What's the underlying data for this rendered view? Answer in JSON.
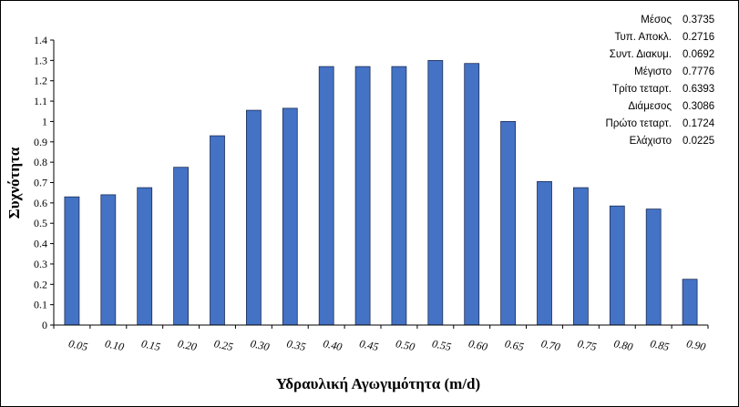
{
  "chart_data": {
    "type": "bar",
    "categories": [
      "0.05",
      "0.10",
      "0.15",
      "0.20",
      "0.25",
      "0.30",
      "0.35",
      "0.40",
      "0.45",
      "0.50",
      "0.55",
      "0.60",
      "0.65",
      "0.70",
      "0.75",
      "0.80",
      "0.85",
      "0.90"
    ],
    "values": [
      0.63,
      0.64,
      0.675,
      0.775,
      0.93,
      1.055,
      1.065,
      1.27,
      1.27,
      1.27,
      1.3,
      1.285,
      1.0,
      0.705,
      0.675,
      0.585,
      0.57,
      0.225
    ],
    "xlabel": "Υδραυλική Αγωγιμότητα (m/d)",
    "ylabel": "Συχνότητα",
    "ylim": [
      0,
      1.4
    ],
    "yticks": [
      "0",
      "0.1",
      "0.2",
      "0.3",
      "0.4",
      "0.5",
      "0.6",
      "0.7",
      "0.8",
      "0.9",
      "1",
      "1.1",
      "1.2",
      "1.3",
      "1.4"
    ],
    "bar_color": "#4472C4",
    "grid": false,
    "legend": "none"
  },
  "stats": [
    {
      "label": "Μέσος",
      "value": "0.3735"
    },
    {
      "label": "Τυπ. Αποκλ.",
      "value": "0.2716"
    },
    {
      "label": "Συντ. Διακυμ.",
      "value": "0.0692"
    },
    {
      "label": "Μέγιστο",
      "value": "0.7776"
    },
    {
      "label": "Τρίτο τεταρτ.",
      "value": "0.6393"
    },
    {
      "label": "Διάμεσος",
      "value": "0.3086"
    },
    {
      "label": "Πρώτο τεταρτ.",
      "value": "0.1724"
    },
    {
      "label": "Ελάχιστο",
      "value": "0.0225"
    }
  ]
}
